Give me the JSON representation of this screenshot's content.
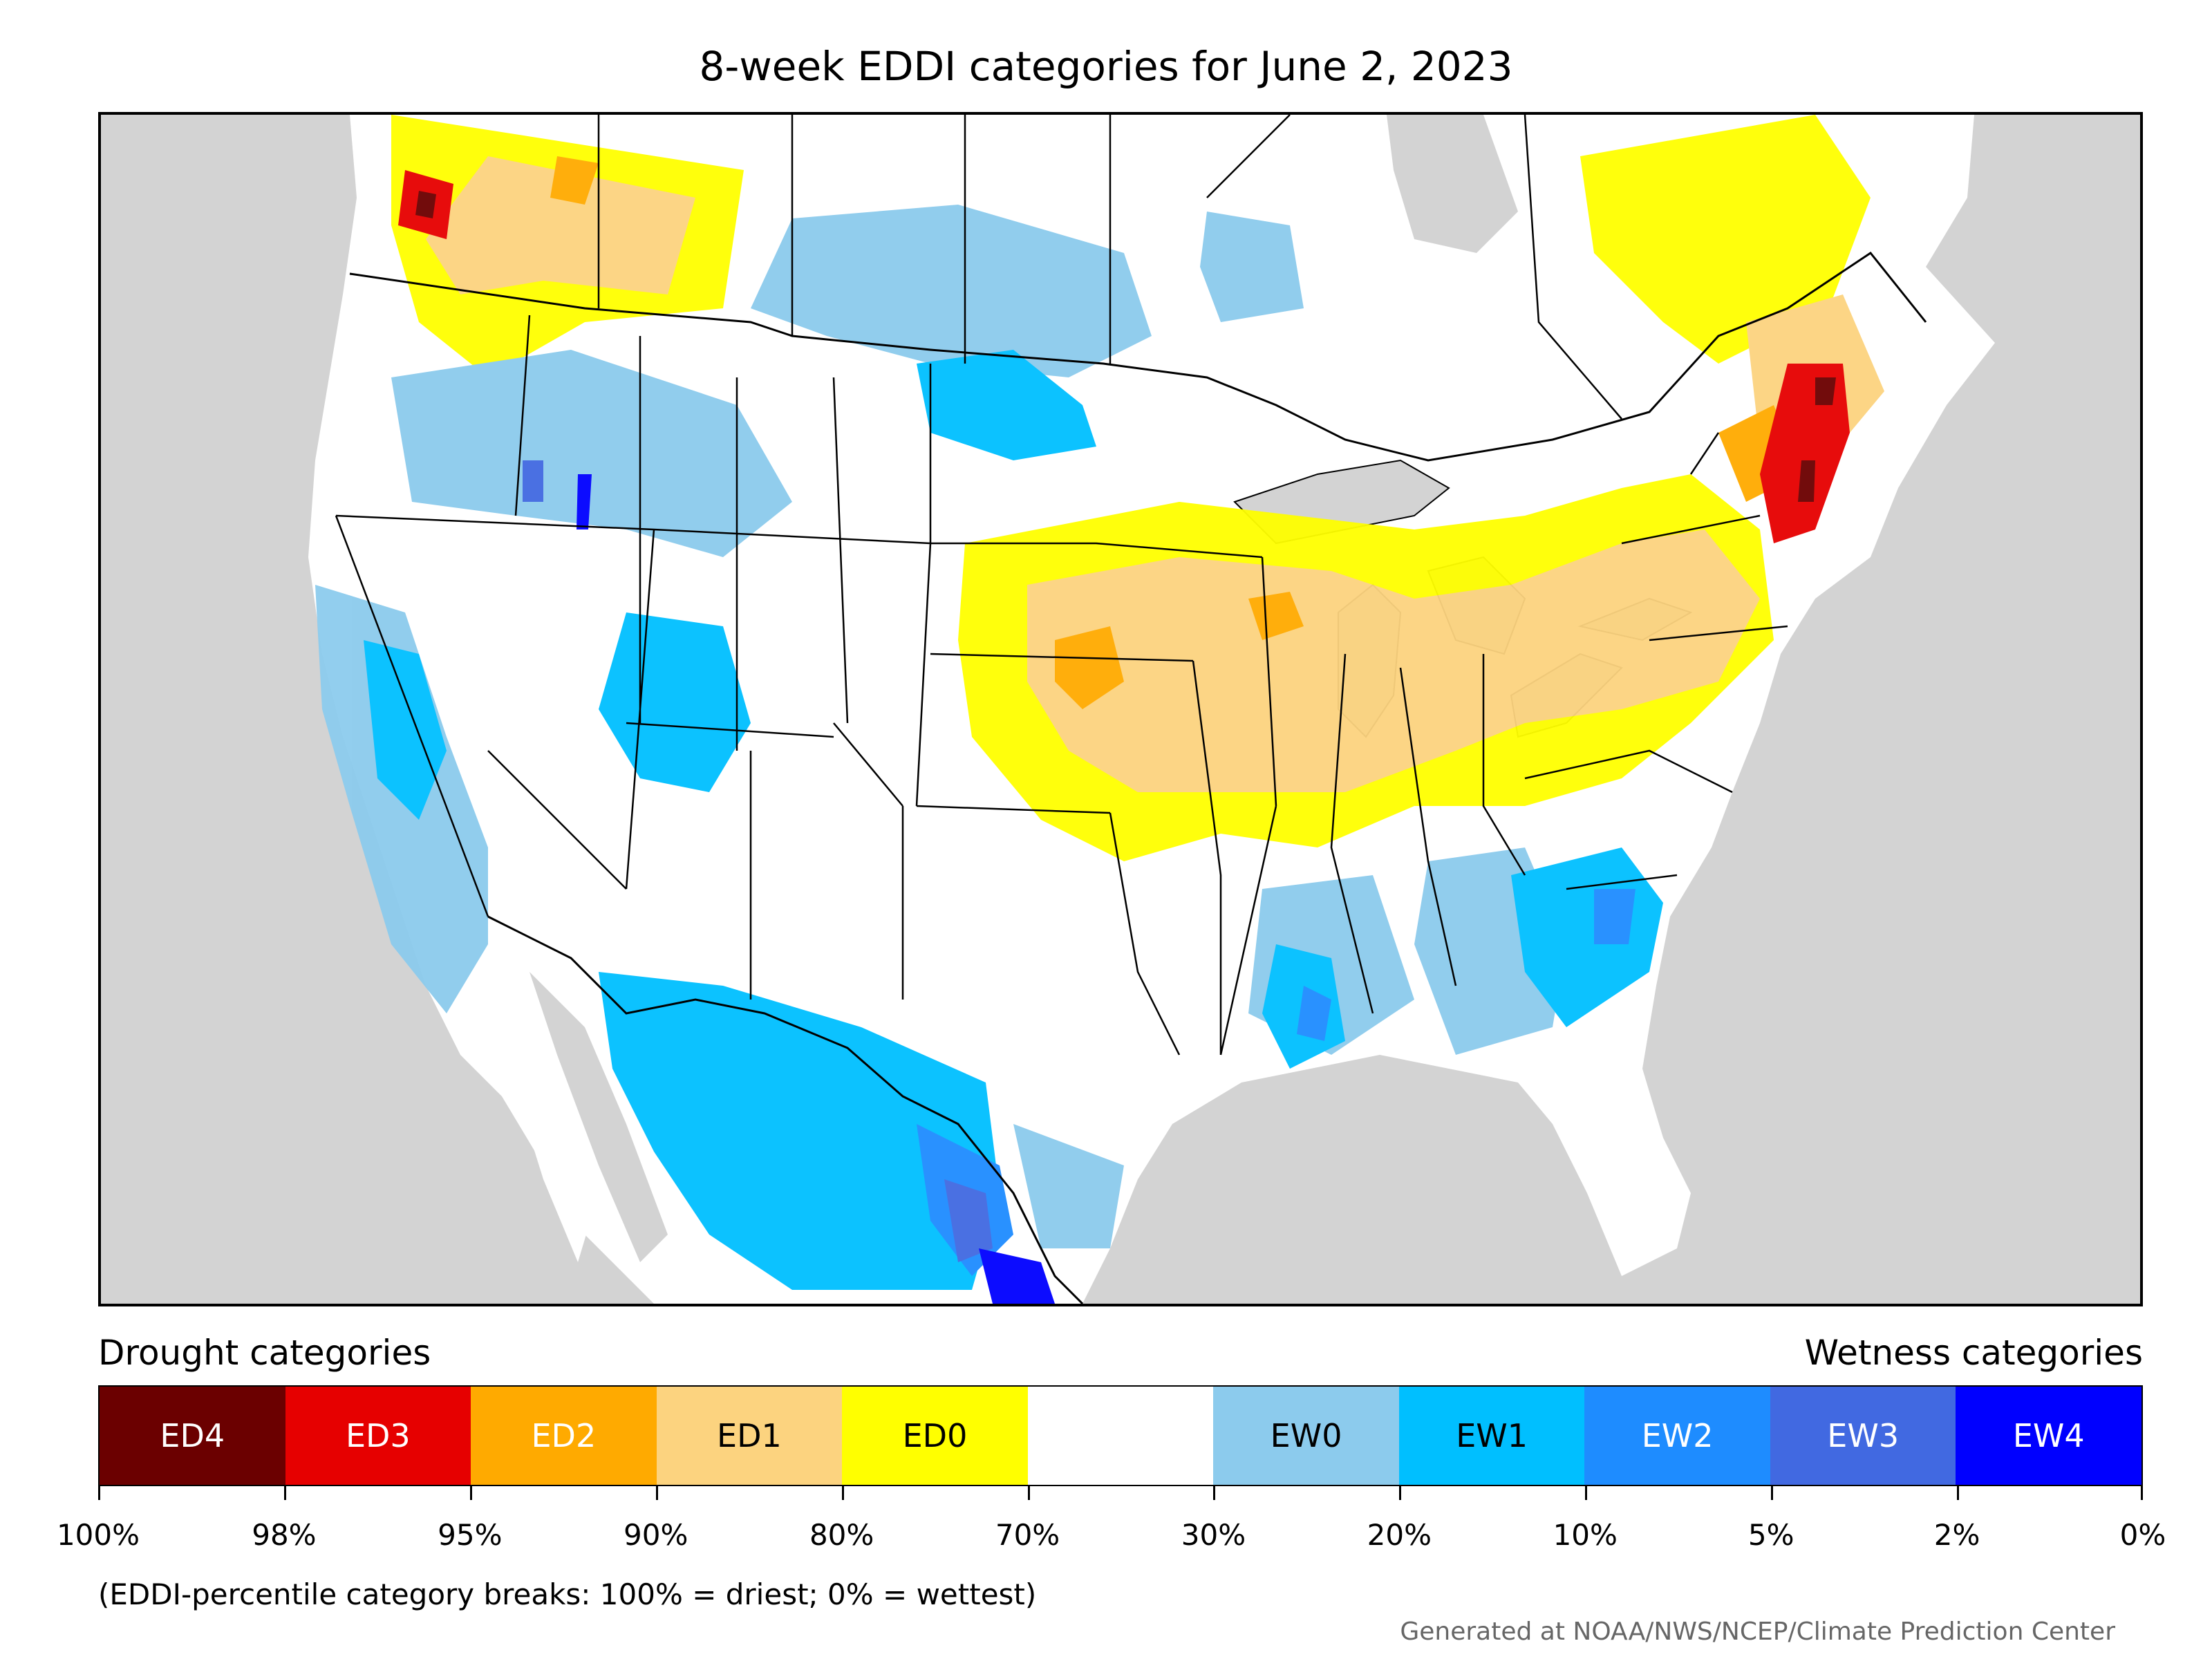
{
  "title": "8-week EDDI categories for June 2, 2023",
  "legend": {
    "drought_label": "Drought categories",
    "wetness_label": "Wetness categories",
    "note": "(EDDI-percentile category breaks: 100% = driest; 0% = wettest)",
    "categories": [
      {
        "label": "ED4",
        "color": "#6b0000",
        "text_color": "#ffffff"
      },
      {
        "label": "ED3",
        "color": "#e60000",
        "text_color": "#ffffff"
      },
      {
        "label": "ED2",
        "color": "#ffaa00",
        "text_color": "#ffffff"
      },
      {
        "label": "ED1",
        "color": "#fcd37f",
        "text_color": "#000000"
      },
      {
        "label": "ED0",
        "color": "#ffff00",
        "text_color": "#000000"
      },
      {
        "label": "",
        "color": "#ffffff",
        "text_color": "#000000"
      },
      {
        "label": "EW0",
        "color": "#8ccbed",
        "text_color": "#000000"
      },
      {
        "label": "EW1",
        "color": "#00bfff",
        "text_color": "#000000"
      },
      {
        "label": "EW2",
        "color": "#1e8cff",
        "text_color": "#ffffff"
      },
      {
        "label": "EW3",
        "color": "#4169e1",
        "text_color": "#ffffff"
      },
      {
        "label": "EW4",
        "color": "#0000ff",
        "text_color": "#ffffff"
      }
    ],
    "breaks": [
      "100%",
      "98%",
      "95%",
      "90%",
      "80%",
      "70%",
      "30%",
      "20%",
      "10%",
      "5%",
      "2%",
      "0%"
    ]
  },
  "map": {
    "ocean_color": "#d3d3d3",
    "land_color": "#ffffff",
    "boundary_color": "#000000"
  },
  "credit": "Generated at NOAA/NWS/NCEP/Climate Prediction Center"
}
